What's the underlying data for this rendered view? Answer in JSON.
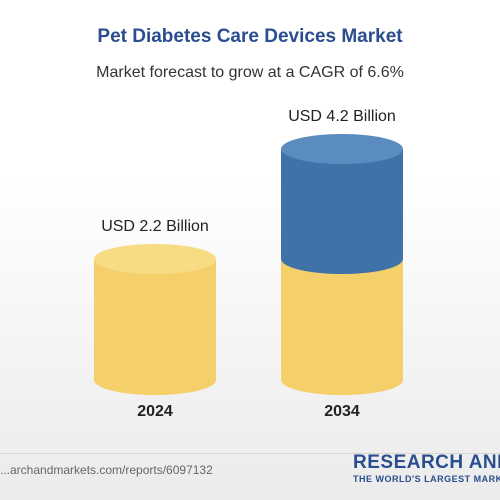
{
  "chart_data": {
    "type": "bar",
    "title": "Pet Diabetes Care Devices Market",
    "subtitle": "Market forecast to grow at a CAGR of 6.6%",
    "categories": [
      "2024",
      "2034"
    ],
    "values": [
      2.2,
      4.2
    ],
    "value_labels": [
      "USD 2.2 Billion",
      "USD 4.2 Billion"
    ],
    "unit": "USD Billion",
    "baseline_value": 2.2,
    "growth_label": "Market forecast to grow at a CAGR of 6.6%"
  },
  "colors": {
    "title": "#2a4d8f",
    "base_bar": "#f5cf6a",
    "base_bar_top": "#f8dc84",
    "growth_bar": "#3f72a8",
    "growth_bar_top": "#5a8cc0"
  },
  "footer": {
    "source": "...archandmarkets.com/reports/6097132",
    "brand_name": "RESEARCH AND",
    "brand_tagline": "THE WORLD'S LARGEST MARKET"
  }
}
